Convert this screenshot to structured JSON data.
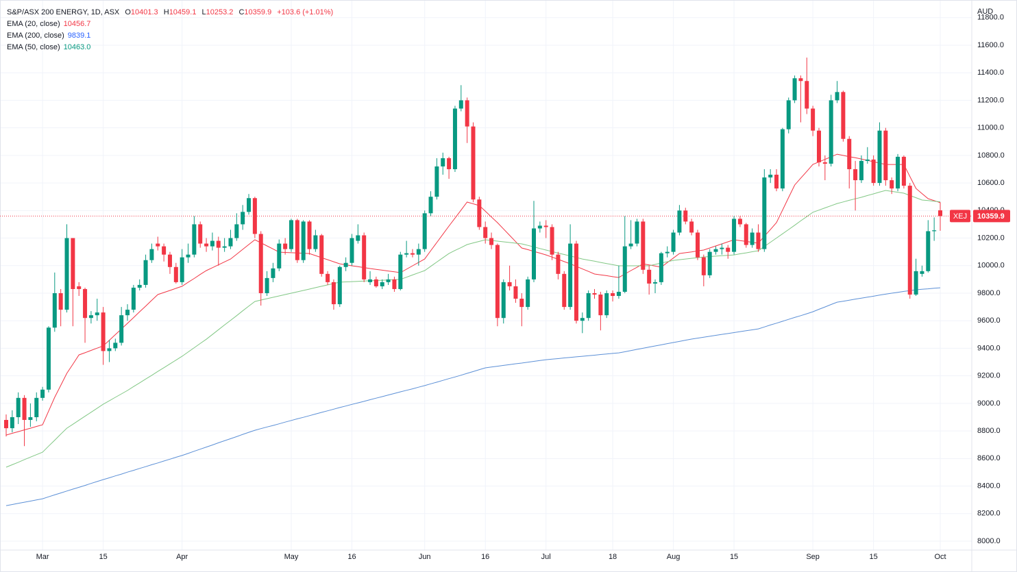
{
  "chart_data": {
    "type": "candlestick",
    "title": "S&P/ASX 200 ENERGY, 1D, ASX",
    "ohlc_labels": [
      "O",
      "H",
      "L",
      "C"
    ],
    "change_label": "+103.6 (+1.01%)",
    "currency": "AUD",
    "symbol": "XEJ",
    "up_color": "#089981",
    "down_color": "#f23645",
    "categories": [
      null,
      null,
      null,
      null,
      null,
      null,
      "Mar",
      null,
      null,
      null,
      null,
      null,
      null,
      null,
      null,
      null,
      "15",
      null,
      null,
      null,
      null,
      null,
      null,
      null,
      null,
      null,
      null,
      null,
      null,
      "Apr",
      null,
      null,
      null,
      null,
      null,
      null,
      null,
      null,
      null,
      null,
      null,
      null,
      null,
      null,
      null,
      null,
      null,
      "May",
      null,
      null,
      null,
      null,
      null,
      null,
      null,
      null,
      null,
      "16",
      null,
      null,
      null,
      null,
      null,
      null,
      null,
      null,
      null,
      null,
      null,
      "Jun",
      null,
      null,
      null,
      null,
      null,
      null,
      null,
      null,
      null,
      "16",
      null,
      null,
      null,
      null,
      null,
      null,
      null,
      null,
      null,
      "Jul",
      null,
      null,
      null,
      null,
      null,
      null,
      null,
      null,
      null,
      null,
      "18",
      null,
      null,
      null,
      null,
      null,
      null,
      null,
      null,
      null,
      "Aug",
      null,
      null,
      null,
      null,
      null,
      null,
      null,
      null,
      null,
      "15",
      null,
      null,
      null,
      null,
      null,
      null,
      null,
      null,
      null,
      null,
      null,
      null,
      "Sep",
      null,
      null,
      null,
      null,
      null,
      null,
      null,
      null,
      null,
      "15",
      null,
      null,
      null,
      null,
      null,
      null,
      null,
      null,
      null,
      null,
      "Oct"
    ],
    "open": [
      8880,
      8820,
      8900,
      9040,
      8880,
      8900,
      9040,
      9100,
      9550,
      9800,
      9680,
      10200,
      9850,
      9830,
      9620,
      9640,
      9660,
      9380,
      9400,
      9440,
      9640,
      9680,
      9840,
      9860,
      10040,
      10160,
      10140,
      10080,
      9990,
      9880,
      10060,
      10080,
      10300,
      10160,
      10140,
      10180,
      10130,
      10140,
      10200,
      10300,
      10390,
      10490,
      10230,
      9800,
      9910,
      9980,
      10160,
      10120,
      10330,
      10040,
      10320,
      10120,
      10220,
      9940,
      9880,
      9720,
      9990,
      10020,
      10180,
      10220,
      9880,
      9900,
      9850,
      9880,
      9900,
      9830,
      10080,
      10090,
      10080,
      10120,
      10380,
      10500,
      10720,
      10780,
      10700,
      11140,
      11200,
      11010,
      10480,
      10280,
      10200,
      10150,
      9620,
      9880,
      9850,
      9760,
      9700,
      9900,
      10270,
      10290,
      10280,
      10080,
      9940,
      9700,
      10160,
      9600,
      9620,
      9800,
      9790,
      9640,
      9800,
      9780,
      9810,
      10140,
      10160,
      10320,
      9970,
      9870,
      9880,
      10090,
      10100,
      10240,
      10400,
      10320,
      10240,
      10060,
      9930,
      10100,
      10120,
      10130,
      10100,
      10340,
      10300,
      10150,
      10240,
      10120,
      10640,
      10660,
      10560,
      10990,
      11200,
      11360,
      11340,
      11140,
      10980,
      10750,
      10740,
      11200,
      11260,
      10920,
      10700,
      10620,
      10760,
      10770,
      10600,
      10980,
      10620,
      10560,
      10790,
      10580,
      9790,
      9940,
      9960,
      10250,
      10401.3
    ],
    "high": [
      8920,
      8950,
      9080,
      9060,
      9000,
      9080,
      9120,
      9560,
      9950,
      9830,
      10300,
      10200,
      9880,
      9840,
      9670,
      9760,
      9700,
      9460,
      9470,
      9700,
      9720,
      9860,
      9900,
      10080,
      10160,
      10210,
      10160,
      10100,
      10020,
      10120,
      10160,
      10360,
      10320,
      10200,
      10240,
      10210,
      10200,
      10260,
      10380,
      10440,
      10520,
      10500,
      10250,
      9960,
      10020,
      10190,
      10200,
      10340,
      10340,
      10330,
      10330,
      10260,
      10230,
      9960,
      9900,
      10000,
      10060,
      10230,
      10300,
      10240,
      9960,
      9920,
      9900,
      9940,
      9920,
      10100,
      10180,
      10120,
      10160,
      10400,
      10540,
      10780,
      10820,
      10790,
      11160,
      11310,
      11220,
      11040,
      10500,
      10320,
      10240,
      10160,
      9900,
      10000,
      9900,
      9800,
      9920,
      10470,
      10320,
      10330,
      10300,
      10100,
      9960,
      10300,
      10180,
      9660,
      9820,
      9830,
      9810,
      9820,
      9820,
      10000,
      10360,
      10330,
      10340,
      10340,
      10000,
      9900,
      10100,
      10140,
      10260,
      10440,
      10420,
      10340,
      10260,
      10080,
      10120,
      10140,
      10160,
      10150,
      10360,
      10360,
      10310,
      10270,
      10300,
      10700,
      10700,
      10700,
      11000,
      11220,
      11380,
      11380,
      11510,
      11160,
      11000,
      10800,
      11240,
      11340,
      11270,
      10940,
      10760,
      10800,
      10860,
      10800,
      11040,
      11000,
      10640,
      10810,
      10800,
      10600,
      10050,
      10000,
      10330,
      10350,
      10459.1
    ],
    "low": [
      8760,
      8790,
      8850,
      8690,
      8830,
      8870,
      9020,
      9080,
      9520,
      9560,
      9660,
      9560,
      9780,
      9440,
      9580,
      9600,
      9280,
      9300,
      9380,
      9420,
      9600,
      9660,
      9820,
      9840,
      10020,
      10110,
      10030,
      9940,
      9870,
      9860,
      10020,
      10060,
      10130,
      10100,
      10110,
      10000,
      10100,
      10120,
      10180,
      10260,
      10370,
      10200,
      9710,
      9780,
      9880,
      9960,
      10080,
      10100,
      10020,
      10020,
      10080,
      10100,
      9920,
      9860,
      9680,
      9700,
      9960,
      10000,
      10160,
      9880,
      9860,
      9840,
      9830,
      9860,
      9810,
      9820,
      10060,
      10060,
      10000,
      10100,
      10360,
      10480,
      10660,
      10630,
      10680,
      11120,
      10890,
      10460,
      10260,
      10160,
      10120,
      9560,
      9580,
      9820,
      9730,
      9560,
      9680,
      9880,
      10240,
      10200,
      10040,
      9900,
      9680,
      9680,
      9580,
      9510,
      9600,
      9760,
      9530,
      9620,
      9740,
      9760,
      9800,
      10120,
      10140,
      9940,
      9790,
      9800,
      9860,
      10060,
      10080,
      10220,
      10300,
      10220,
      10040,
      9850,
      9910,
      10080,
      10080,
      10050,
      10080,
      10280,
      10130,
      10130,
      10100,
      10100,
      10600,
      10540,
      10540,
      10960,
      11180,
      11040,
      11100,
      10940,
      10720,
      10620,
      10720,
      11180,
      10900,
      10560,
      10400,
      10600,
      10740,
      10580,
      10580,
      10580,
      10520,
      10540,
      10560,
      9760,
      9780,
      9920,
      9950,
      10180,
      10253.2
    ],
    "close": [
      8820,
      8900,
      9040,
      8880,
      8900,
      9040,
      9100,
      9550,
      9800,
      9680,
      10200,
      9830,
      9830,
      9620,
      9640,
      9660,
      9380,
      9400,
      9440,
      9640,
      9680,
      9840,
      9860,
      10040,
      10120,
      10140,
      10080,
      9990,
      9880,
      10060,
      10080,
      10300,
      10160,
      10140,
      10180,
      10130,
      10140,
      10200,
      10300,
      10390,
      10490,
      10230,
      9800,
      9910,
      9980,
      10160,
      10120,
      10330,
      10040,
      10320,
      10120,
      10220,
      9940,
      9880,
      9720,
      9990,
      10020,
      10200,
      10220,
      9900,
      9900,
      9850,
      9880,
      9900,
      9830,
      10080,
      10090,
      10080,
      10120,
      10380,
      10500,
      10720,
      10780,
      10700,
      11140,
      11200,
      11010,
      10480,
      10280,
      10200,
      10150,
      9620,
      9880,
      9850,
      9760,
      9700,
      9900,
      10270,
      10290,
      10280,
      10080,
      9940,
      9700,
      10160,
      9600,
      9620,
      9800,
      9790,
      9640,
      9800,
      9780,
      9810,
      10140,
      10160,
      10320,
      9970,
      9870,
      9880,
      10090,
      10100,
      10240,
      10400,
      10320,
      10240,
      10060,
      9930,
      10100,
      10120,
      10130,
      10100,
      10340,
      10300,
      10150,
      10240,
      10120,
      10640,
      10660,
      10560,
      10990,
      11200,
      11360,
      11340,
      11140,
      10980,
      10750,
      10740,
      11200,
      11260,
      10920,
      10700,
      10620,
      10760,
      10770,
      10600,
      10980,
      10620,
      10560,
      10790,
      10580,
      9790,
      9960,
      9960,
      10250,
      10256.3,
      10359.9
    ],
    "series": [
      {
        "name": "EMA (20, close)",
        "color": "#f23645",
        "last_label": "10456.7",
        "values": [
          8770,
          8783,
          8795,
          8808,
          8820,
          8833,
          8845,
          8945,
          9044,
          9131,
          9218,
          9285,
          9352,
          9368,
          9385,
          9401,
          9417,
          9458,
          9499,
          9540,
          9581,
          9623,
          9665,
          9706,
          9748,
          9790,
          9805,
          9820,
          9835,
          9850,
          9879,
          9907,
          9936,
          9964,
          9985,
          10006,
          10027,
          10048,
          10083,
          10118,
          10153,
          10188,
          10166,
          10143,
          10121,
          10098,
          10096,
          10094,
          10092,
          10090,
          10088,
          10073,
          10058,
          10043,
          10028,
          10013,
          10006,
          9999,
          9993,
          9986,
          9979,
          9973,
          9967,
          9961,
          9955,
          9949,
          9974,
          9999,
          10023,
          10048,
          10108,
          10168,
          10227,
          10287,
          10345,
          10403,
          10461,
          10449,
          10436,
          10395,
          10353,
          10312,
          10266,
          10220,
          10174,
          10128,
          10116,
          10103,
          10091,
          10078,
          10062,
          10046,
          10029,
          10013,
          9995,
          9976,
          9958,
          9939,
          9933,
          9927,
          9920,
          9914,
          9939,
          9964,
          9988,
          10013,
          10005,
          9997,
          9989,
          10022,
          10055,
          10088,
          10094,
          10100,
          10107,
          10113,
          10128,
          10143,
          10158,
          10173,
          10188,
          10182,
          10176,
          10169,
          10163,
          10213,
          10262,
          10312,
          10403,
          10494,
          10585,
          10635,
          10684,
          10734,
          10753,
          10771,
          10790,
          10809,
          10800,
          10791,
          10783,
          10774,
          10764,
          10754,
          10744,
          10734,
          10734,
          10734,
          10734,
          10647,
          10560,
          10523,
          10486,
          10472,
          10456.7
        ]
      },
      {
        "name": "EMA (200, close)",
        "color": "#2962ff",
        "line_color": "#5b8fd6",
        "last_label": "9839.1",
        "values": [
          8258,
          8266,
          8275,
          8283,
          8291,
          8300,
          8308,
          8322,
          8336,
          8350,
          8364,
          8378,
          8391,
          8405,
          8419,
          8433,
          8447,
          8460,
          8474,
          8487,
          8501,
          8514,
          8528,
          8541,
          8555,
          8568,
          8582,
          8595,
          8609,
          8622,
          8637,
          8653,
          8668,
          8683,
          8698,
          8714,
          8729,
          8744,
          8759,
          8775,
          8790,
          8805,
          8817,
          8829,
          8840,
          8852,
          8864,
          8876,
          8888,
          8899,
          8911,
          8923,
          8935,
          8946,
          8958,
          8970,
          8981,
          8993,
          9004,
          9015,
          9027,
          9038,
          9049,
          9061,
          9072,
          9084,
          9095,
          9106,
          9118,
          9129,
          9142,
          9154,
          9167,
          9180,
          9192,
          9205,
          9218,
          9231,
          9245,
          9258,
          9264,
          9270,
          9276,
          9282,
          9288,
          9293,
          9299,
          9305,
          9311,
          9317,
          9321,
          9325,
          9330,
          9334,
          9338,
          9342,
          9346,
          9350,
          9355,
          9359,
          9363,
          9367,
          9375,
          9384,
          9392,
          9400,
          9409,
          9417,
          9425,
          9434,
          9442,
          9450,
          9459,
          9467,
          9474,
          9480,
          9487,
          9494,
          9501,
          9507,
          9514,
          9521,
          9528,
          9534,
          9541,
          9555,
          9569,
          9582,
          9596,
          9610,
          9624,
          9637,
          9651,
          9665,
          9683,
          9700,
          9718,
          9735,
          9742,
          9749,
          9757,
          9764,
          9771,
          9778,
          9786,
          9793,
          9800,
          9806,
          9813,
          9819,
          9825,
          9829,
          9832,
          9836,
          9839.1
        ]
      },
      {
        "name": "EMA (50, close)",
        "color": "#089981",
        "line_color": "#81c784",
        "last_label": "10463.0",
        "values": [
          8537,
          8555,
          8573,
          8592,
          8610,
          8628,
          8646,
          8690,
          8733,
          8777,
          8820,
          8849,
          8878,
          8907,
          8936,
          8965,
          8994,
          9019,
          9044,
          9069,
          9094,
          9122,
          9149,
          9177,
          9204,
          9232,
          9259,
          9287,
          9314,
          9342,
          9373,
          9404,
          9435,
          9466,
          9500,
          9535,
          9569,
          9603,
          9637,
          9672,
          9706,
          9740,
          9750,
          9760,
          9770,
          9780,
          9790,
          9800,
          9810,
          9820,
          9830,
          9840,
          9850,
          9860,
          9870,
          9880,
          9882,
          9884,
          9886,
          9888,
          9890,
          9892,
          9894,
          9896,
          9898,
          9900,
          9916,
          9932,
          9948,
          9964,
          9995,
          10026,
          10057,
          10088,
          10110,
          10131,
          10153,
          10165,
          10176,
          10188,
          10183,
          10178,
          10173,
          10168,
          10163,
          10158,
          10147,
          10136,
          10124,
          10113,
          10102,
          10091,
          10081,
          10070,
          10059,
          10048,
          10040,
          10032,
          10023,
          10015,
          10007,
          9999,
          9999,
          9999,
          9999,
          9999,
          9999,
          10009,
          10019,
          10028,
          10038,
          10043,
          10048,
          10053,
          10058,
          10063,
          10066,
          10069,
          10072,
          10075,
          10078,
          10086,
          10093,
          10101,
          10108,
          10139,
          10170,
          10200,
          10231,
          10262,
          10293,
          10325,
          10356,
          10387,
          10403,
          10419,
          10435,
          10451,
          10462,
          10474,
          10485,
          10496,
          10509,
          10521,
          10534,
          10546,
          10539,
          10533,
          10526,
          10509,
          10493,
          10476,
          10472,
          10467,
          10463
        ]
      }
    ],
    "ylim": [
      7935.4,
      11928
    ],
    "yticks": [
      {
        "value": 8000,
        "label": "8000.0"
      },
      {
        "value": 8200,
        "label": "8200.0"
      },
      {
        "value": 8400,
        "label": "8400.0"
      },
      {
        "value": 8600,
        "label": "8600.0"
      },
      {
        "value": 8800,
        "label": "8800.0"
      },
      {
        "value": 9000,
        "label": "9000.0"
      },
      {
        "value": 9200,
        "label": "9200.0"
      },
      {
        "value": 9400,
        "label": "9400.0"
      },
      {
        "value": 9600,
        "label": "9600.0"
      },
      {
        "value": 9800,
        "label": "9800.0"
      },
      {
        "value": 10000,
        "label": "10000.0"
      },
      {
        "value": 10200,
        "label": "10200.0"
      },
      {
        "value": 10400,
        "label": "10400.0"
      },
      {
        "value": 10600,
        "label": "10600.0"
      },
      {
        "value": 10800,
        "label": "10800.0"
      },
      {
        "value": 11000,
        "label": "11000.0"
      },
      {
        "value": 11200,
        "label": "11200.0"
      },
      {
        "value": 11400,
        "label": "11400.0"
      },
      {
        "value": 11600,
        "label": "11600.0"
      },
      {
        "value": 11800,
        "label": "11800.0"
      }
    ],
    "grid": true
  }
}
